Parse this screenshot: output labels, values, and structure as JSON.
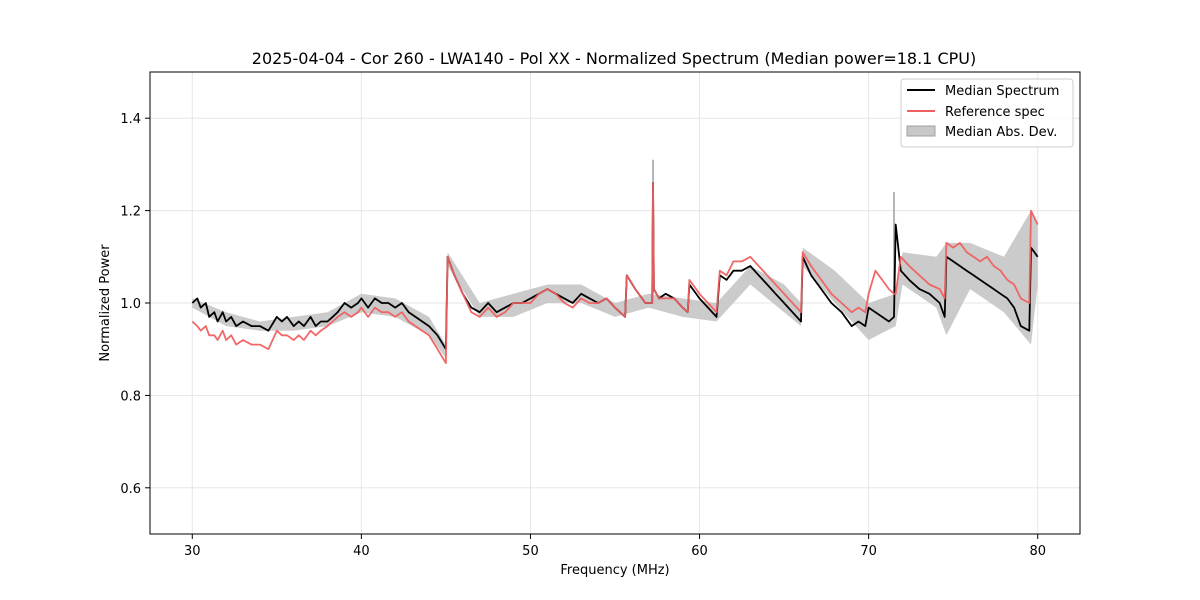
{
  "chart_data": {
    "type": "line",
    "title": "2025-04-04 - Cor 260 - LWA140 - Pol XX - Normalized Spectrum (Median power=18.1 CPU)",
    "xlabel": "Frequency (MHz)",
    "ylabel": "Normalized Power",
    "xlim": [
      27.5,
      82.5
    ],
    "ylim": [
      0.5,
      1.5
    ],
    "xticks": [
      30,
      40,
      50,
      60,
      70,
      80
    ],
    "yticks": [
      0.6,
      0.8,
      1.0,
      1.2,
      1.4
    ],
    "xtick_labels": [
      "30",
      "40",
      "50",
      "60",
      "70",
      "80"
    ],
    "ytick_labels": [
      "0.6",
      "0.8",
      "1.0",
      "1.2",
      "1.4"
    ],
    "grid": true,
    "legend_position": "top-right",
    "legend": [
      "Median Spectrum",
      "Reference spec",
      "Median Abs. Dev."
    ],
    "colors": {
      "median": "#000000",
      "reference": "#f06060",
      "mad_fill": "#c8c8c8",
      "overlap": "#8b0000"
    },
    "series": [
      {
        "name": "Median Spectrum",
        "x": [
          30,
          30.3,
          30.5,
          30.8,
          31,
          31.3,
          31.5,
          31.8,
          32,
          32.3,
          32.6,
          33,
          33.5,
          34,
          34.5,
          35,
          35.3,
          35.6,
          36,
          36.3,
          36.6,
          37,
          37.3,
          37.6,
          38,
          38.3,
          38.6,
          39,
          39.4,
          39.8,
          40,
          40.4,
          40.8,
          41.2,
          41.6,
          42,
          42.4,
          42.8,
          43.2,
          43.6,
          44,
          44.5,
          45,
          45.1,
          45.5,
          46,
          46.5,
          47,
          47.5,
          48,
          48.5,
          49,
          49.5,
          50,
          50.5,
          51,
          51.5,
          52,
          52.5,
          53,
          53.5,
          54,
          54.5,
          55,
          55.6,
          55.7,
          56.2,
          56.8,
          57.2,
          57.25,
          57.3,
          57.6,
          58,
          58.5,
          59,
          59.3,
          59.4,
          60,
          60.5,
          61,
          61.2,
          61.6,
          62,
          62.5,
          63,
          63.5,
          64,
          64.5,
          65,
          65.5,
          66,
          66.1,
          66.6,
          67.2,
          67.8,
          68.4,
          69,
          69.4,
          69.8,
          70,
          70.4,
          70.8,
          71.2,
          71.5,
          71.6,
          71.9,
          72.4,
          73,
          73.6,
          74.2,
          74.5,
          74.6,
          75,
          75.4,
          75.8,
          76.2,
          76.6,
          77,
          77.4,
          77.8,
          78.2,
          78.6,
          79,
          79.5,
          79.6,
          80
        ],
        "values": [
          1.0,
          1.01,
          0.99,
          1.0,
          0.97,
          0.98,
          0.96,
          0.98,
          0.96,
          0.97,
          0.95,
          0.96,
          0.95,
          0.95,
          0.94,
          0.97,
          0.96,
          0.97,
          0.95,
          0.96,
          0.95,
          0.97,
          0.95,
          0.96,
          0.96,
          0.97,
          0.98,
          1.0,
          0.99,
          1.0,
          1.01,
          0.99,
          1.01,
          1.0,
          1.0,
          0.99,
          1.0,
          0.98,
          0.97,
          0.96,
          0.95,
          0.93,
          0.9,
          1.1,
          1.06,
          1.02,
          0.99,
          0.98,
          1.0,
          0.98,
          0.99,
          1.0,
          1.0,
          1.01,
          1.02,
          1.03,
          1.02,
          1.01,
          1.0,
          1.02,
          1.01,
          1.0,
          1.01,
          0.99,
          0.97,
          1.06,
          1.03,
          1.0,
          1.0,
          1.26,
          1.03,
          1.01,
          1.02,
          1.01,
          0.99,
          0.98,
          1.04,
          1.01,
          0.99,
          0.97,
          1.06,
          1.05,
          1.07,
          1.07,
          1.08,
          1.06,
          1.04,
          1.02,
          1.0,
          0.98,
          0.96,
          1.1,
          1.06,
          1.03,
          1.0,
          0.98,
          0.95,
          0.96,
          0.95,
          0.99,
          0.98,
          0.97,
          0.96,
          0.97,
          1.17,
          1.07,
          1.05,
          1.03,
          1.02,
          1.0,
          0.97,
          1.1,
          1.09,
          1.08,
          1.07,
          1.06,
          1.05,
          1.04,
          1.03,
          1.02,
          1.01,
          0.99,
          0.95,
          0.94,
          1.12,
          1.1
        ]
      },
      {
        "name": "Reference spec",
        "x": [
          30,
          30.3,
          30.5,
          30.8,
          31,
          31.3,
          31.5,
          31.8,
          32,
          32.3,
          32.6,
          33,
          33.5,
          34,
          34.5,
          35,
          35.3,
          35.6,
          36,
          36.3,
          36.6,
          37,
          37.3,
          37.6,
          38,
          38.3,
          38.6,
          39,
          39.4,
          39.8,
          40,
          40.4,
          40.8,
          41.2,
          41.6,
          42,
          42.4,
          42.8,
          43.2,
          43.6,
          44,
          44.5,
          45,
          45.1,
          45.5,
          46,
          46.5,
          47,
          47.5,
          48,
          48.5,
          49,
          49.5,
          50,
          50.5,
          51,
          51.5,
          52,
          52.5,
          53,
          53.5,
          54,
          54.5,
          55,
          55.6,
          55.7,
          56.2,
          56.8,
          57.2,
          57.25,
          57.3,
          57.6,
          58,
          58.5,
          59,
          59.3,
          59.4,
          60,
          60.5,
          61,
          61.2,
          61.6,
          62,
          62.5,
          63,
          63.5,
          64,
          64.5,
          65,
          65.5,
          66,
          66.1,
          66.6,
          67.2,
          67.8,
          68.4,
          69,
          69.4,
          69.8,
          70,
          70.4,
          70.8,
          71.2,
          71.5,
          71.6,
          71.9,
          72.4,
          73,
          73.6,
          74.2,
          74.5,
          74.6,
          75,
          75.4,
          75.8,
          76.2,
          76.6,
          77,
          77.4,
          77.8,
          78.2,
          78.6,
          79,
          79.5,
          79.6,
          80
        ],
        "values": [
          0.96,
          0.95,
          0.94,
          0.95,
          0.93,
          0.93,
          0.92,
          0.94,
          0.92,
          0.93,
          0.91,
          0.92,
          0.91,
          0.91,
          0.9,
          0.94,
          0.93,
          0.93,
          0.92,
          0.93,
          0.92,
          0.94,
          0.93,
          0.94,
          0.95,
          0.96,
          0.97,
          0.98,
          0.97,
          0.98,
          0.99,
          0.97,
          0.99,
          0.98,
          0.98,
          0.97,
          0.98,
          0.96,
          0.95,
          0.94,
          0.93,
          0.9,
          0.87,
          1.1,
          1.06,
          1.02,
          0.98,
          0.97,
          0.99,
          0.97,
          0.98,
          1.0,
          1.0,
          1.0,
          1.02,
          1.03,
          1.02,
          1.0,
          0.99,
          1.01,
          1.0,
          1.0,
          1.01,
          0.99,
          0.97,
          1.06,
          1.03,
          1.0,
          1.0,
          1.26,
          1.03,
          1.01,
          1.01,
          1.01,
          0.99,
          0.98,
          1.05,
          1.02,
          1.0,
          0.98,
          1.07,
          1.06,
          1.09,
          1.09,
          1.1,
          1.08,
          1.06,
          1.04,
          1.02,
          1.0,
          0.98,
          1.11,
          1.08,
          1.05,
          1.02,
          1.0,
          0.98,
          0.99,
          0.98,
          1.02,
          1.07,
          1.05,
          1.03,
          1.02,
          1.02,
          1.1,
          1.08,
          1.06,
          1.04,
          1.03,
          1.01,
          1.13,
          1.12,
          1.13,
          1.11,
          1.1,
          1.09,
          1.1,
          1.08,
          1.07,
          1.05,
          1.04,
          1.01,
          1.0,
          1.2,
          1.17
        ]
      }
    ],
    "mad_band": {
      "name": "Median Abs. Dev.",
      "x": [
        30,
        32,
        34,
        36,
        38,
        40,
        42,
        44,
        45,
        45.1,
        47,
        49,
        51,
        53,
        55,
        57,
        59,
        61,
        63,
        65,
        66,
        66.1,
        68,
        70,
        71.6,
        72,
        74,
        74.6,
        76,
        78,
        79.6,
        80
      ],
      "lower": [
        0.99,
        0.95,
        0.94,
        0.94,
        0.95,
        0.98,
        0.97,
        0.93,
        0.88,
        1.08,
        0.97,
        0.97,
        1.0,
        1.0,
        0.97,
        0.99,
        0.97,
        0.96,
        1.04,
        0.98,
        0.95,
        1.08,
        1.0,
        0.92,
        0.95,
        1.04,
        0.99,
        0.93,
        1.03,
        0.98,
        0.91,
        1.04
      ],
      "upper": [
        1.01,
        0.98,
        0.96,
        0.97,
        0.98,
        1.02,
        1.01,
        0.97,
        0.91,
        1.11,
        1.0,
        1.02,
        1.04,
        1.04,
        1.0,
        1.02,
        1.01,
        1.0,
        1.08,
        1.04,
        1.0,
        1.12,
        1.07,
        1.0,
        1.02,
        1.11,
        1.1,
        1.13,
        1.13,
        1.1,
        1.2,
        1.17
      ],
      "spikes": [
        {
          "x": 57.25,
          "top": 1.31
        },
        {
          "x": 71.5,
          "top": 1.24
        }
      ]
    }
  }
}
